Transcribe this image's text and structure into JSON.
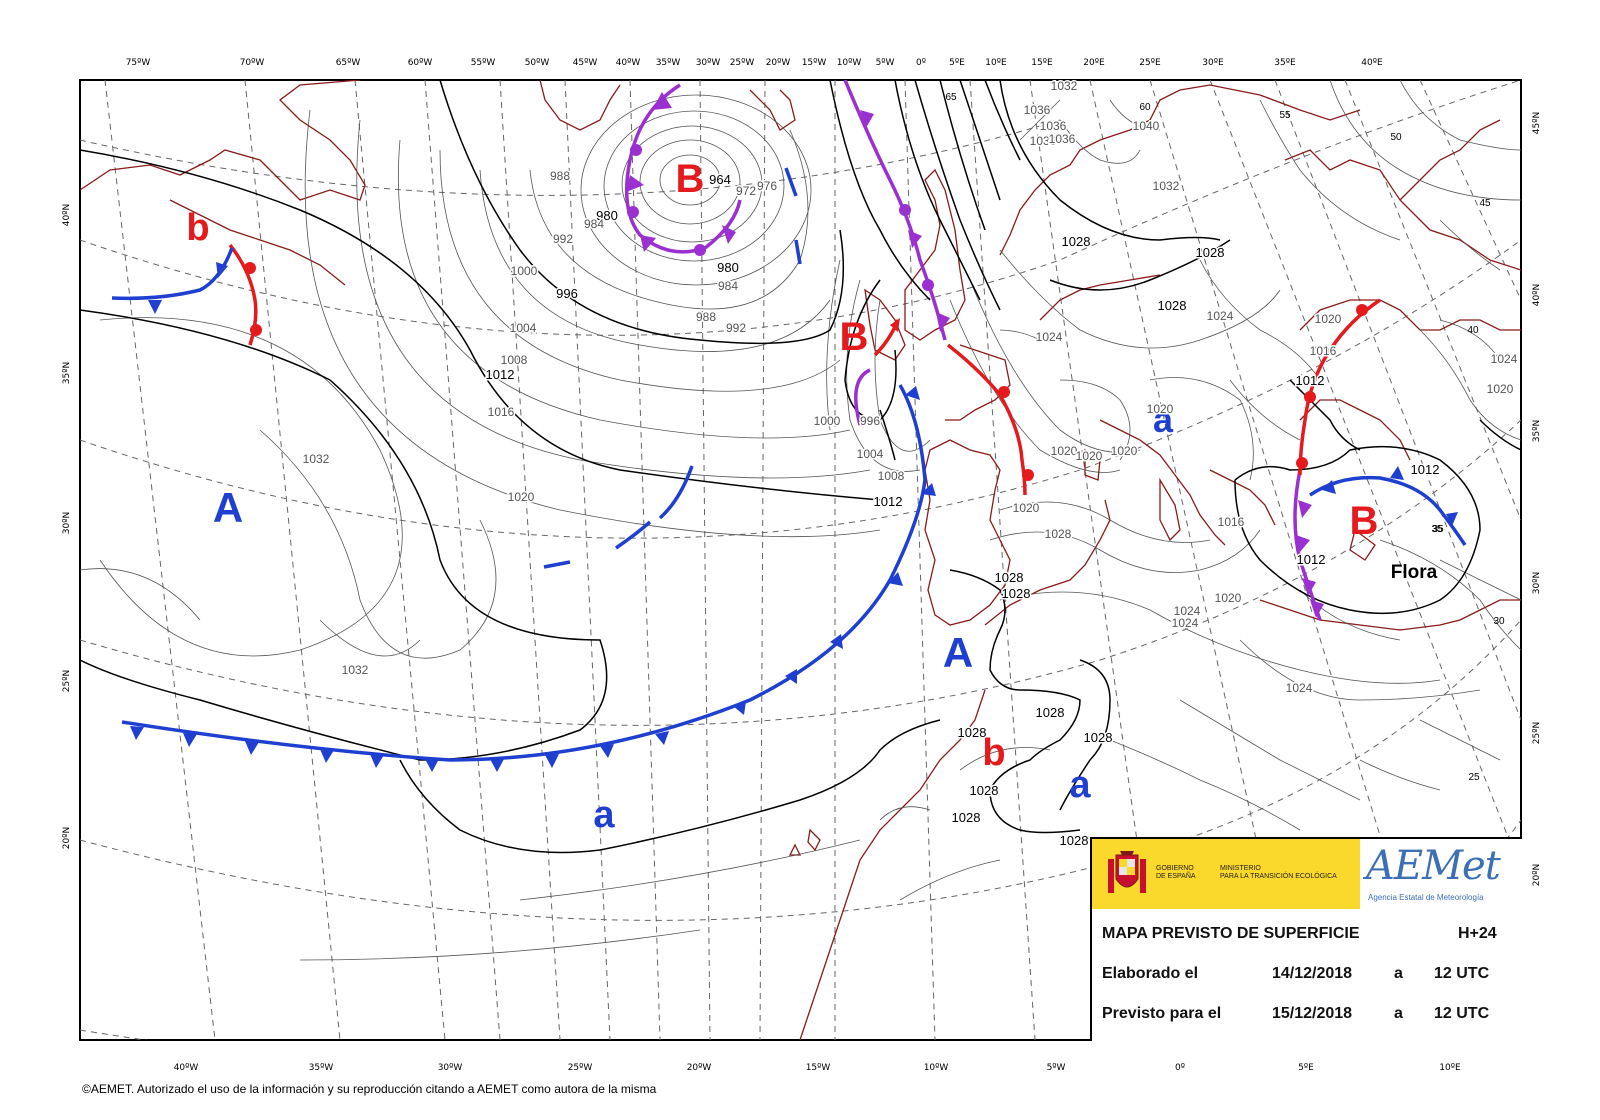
{
  "map": {
    "top_longitudes": [
      "75ºW",
      "70ºW",
      "65ºW",
      "60ºW",
      "55ºW",
      "50ºW",
      "45ºW",
      "40ºW",
      "35ºW",
      "30ºW",
      "25ºW",
      "20ºW",
      "15ºW",
      "10ºW",
      "5ºW",
      "0º",
      "5ºE",
      "10ºE",
      "15ºE",
      "20ºE",
      "25ºE",
      "30ºE",
      "35ºE",
      "40ºE"
    ],
    "bottom_longitudes": [
      "40ºW",
      "35ºW",
      "30ºW",
      "25ºW",
      "20ºW",
      "15ºW",
      "10ºW",
      "5ºW",
      "0º",
      "5ºE",
      "10ºE"
    ],
    "left_latitudes": [
      "40ºN",
      "35ºN",
      "30ºN",
      "25ºN",
      "20ºN"
    ],
    "right_latitudes": [
      "45ºN",
      "40ºN",
      "35ºN",
      "30ºN",
      "25ºN",
      "20ºN"
    ],
    "pressure_centers": [
      {
        "label": "B",
        "color": "#e41a1c"
      },
      {
        "label": "b",
        "color": "#e41a1c"
      },
      {
        "label": "B",
        "color": "#e41a1c"
      },
      {
        "label": "b",
        "color": "#e41a1c"
      },
      {
        "label": "B",
        "color": "#e41a1c"
      },
      {
        "label": "A",
        "color": "#1f3fd0"
      },
      {
        "label": "A",
        "color": "#1f3fd0"
      },
      {
        "label": "a",
        "color": "#1f3fd0"
      },
      {
        "label": "a",
        "color": "#1f3fd0"
      },
      {
        "label": "a",
        "color": "#1f3fd0"
      }
    ],
    "storm_name": "Flora",
    "isobar_labels": [
      "964",
      "972",
      "976",
      "980",
      "980",
      "984",
      "984",
      "988",
      "988",
      "992",
      "992",
      "996",
      "996",
      "1000",
      "1000",
      "1004",
      "1004",
      "1008",
      "1008",
      "1012",
      "1012",
      "1012",
      "1012",
      "1012",
      "1016",
      "1016",
      "1016",
      "1020",
      "1020",
      "1020",
      "1020",
      "1020",
      "1020",
      "1020",
      "1020",
      "1024",
      "1024",
      "1024",
      "1024",
      "1024",
      "1024",
      "1028",
      "1028",
      "1028",
      "1028",
      "1028",
      "1028",
      "1028",
      "1028",
      "1028",
      "1028",
      "1028",
      "1028",
      "1032",
      "1032",
      "1032",
      "1032",
      "1036",
      "1036",
      "1036",
      "1036",
      "1020",
      "1040"
    ],
    "thickness_labels": [
      "65",
      "60",
      "55",
      "50",
      "45",
      "40",
      "35",
      "30",
      "25",
      "35"
    ],
    "colors": {
      "coast": "#8b1a1a",
      "warm_front": "#e41a1c",
      "cold_front": "#1f3fd0",
      "occluded_front": "#9b30d0",
      "isobar": "#000000",
      "grid": "#555555"
    }
  },
  "info": {
    "gov_line1": "GOBIERNO",
    "gov_line2": "DE ESPAÑA",
    "ministry_line1": "MINISTERIO",
    "ministry_line2": "PARA LA TRANSICIÓN ECOLÓGICA",
    "logo": "AEMet",
    "logo_subtitle": "Agencia Estatal de Meteorología",
    "title": "MAPA PREVISTO DE SUPERFICIE",
    "step": "H+24",
    "elaborated_label": "Elaborado el",
    "elaborated_date": "14/12/2018",
    "elaborated_a": "a",
    "elaborated_time": "12 UTC",
    "forecast_label": "Previsto para el",
    "forecast_date": "15/12/2018",
    "forecast_a": "a",
    "forecast_time": "12 UTC"
  },
  "copyright": "©AEMET. Autorizado el uso de la información y su reproducción citando a AEMET como autora de la misma"
}
